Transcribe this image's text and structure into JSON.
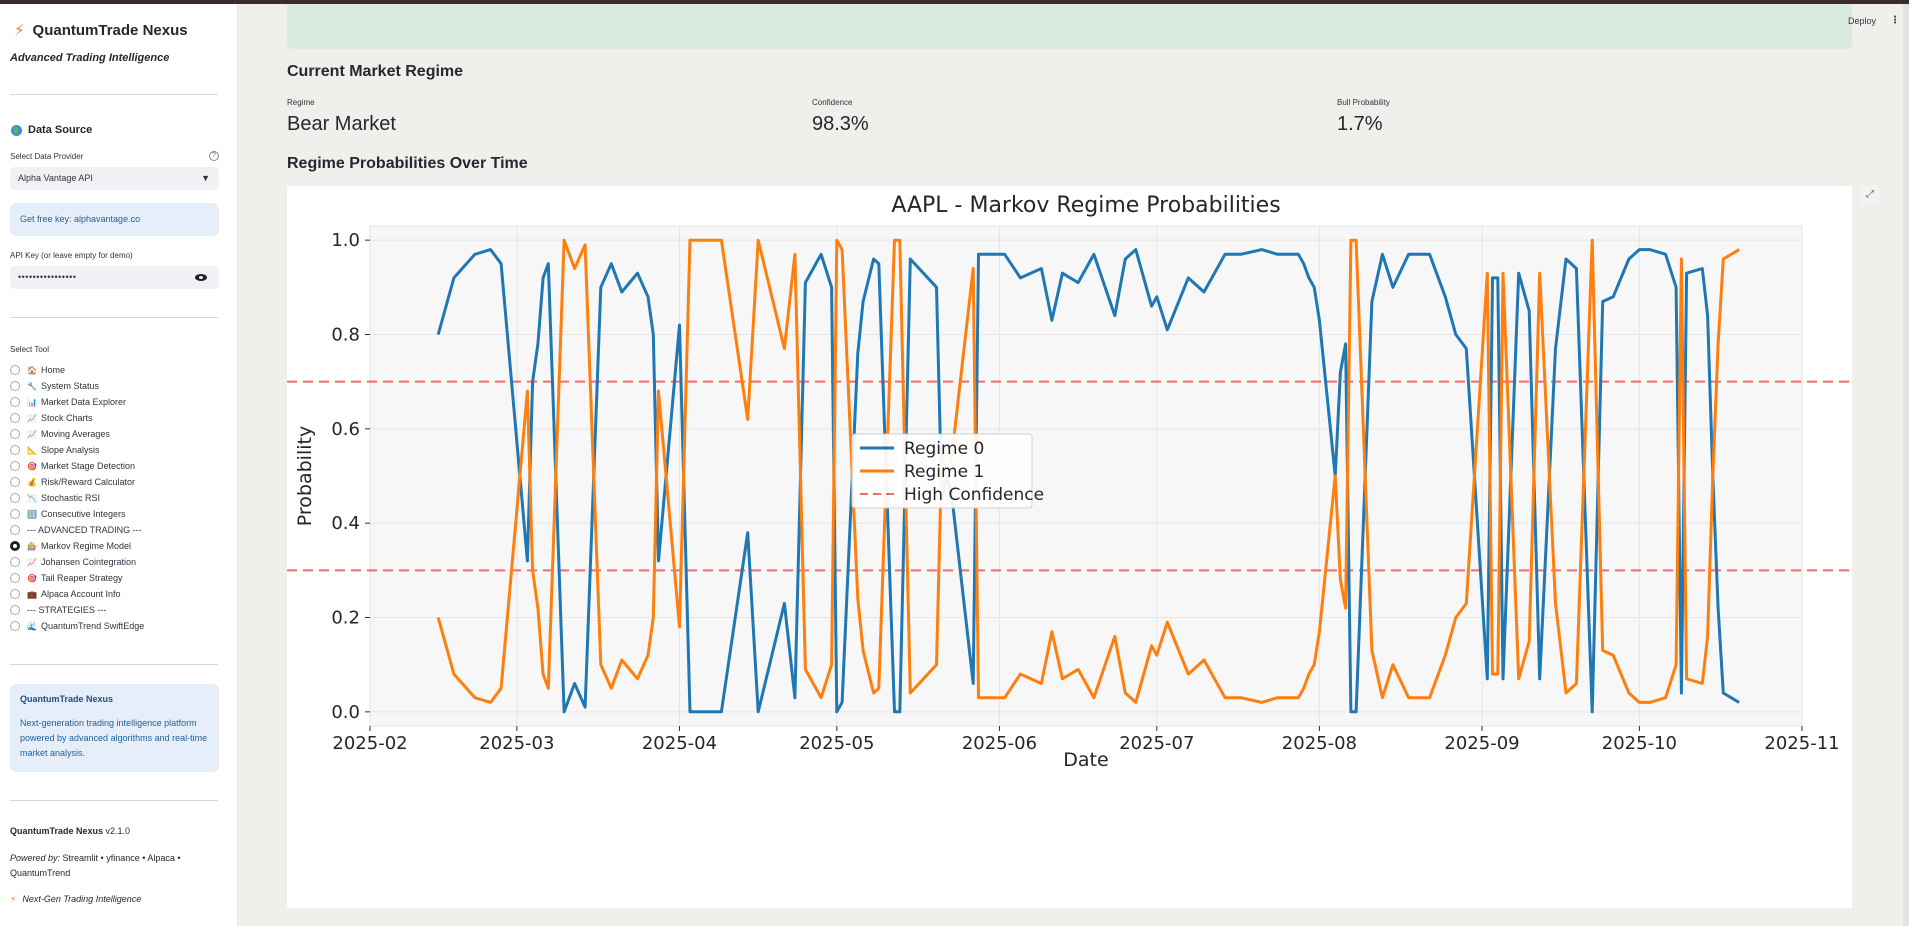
{
  "app": {
    "name": "QuantumTrade Nexus",
    "tagline": "Advanced Trading Intelligence"
  },
  "header": {
    "deploy_label": "Deploy",
    "menu_glyph": "⋮"
  },
  "sidebar": {
    "data_source_heading": "Data Source",
    "provider_label": "Select Data Provider",
    "provider_value": "Alpha Vantage API",
    "free_key_text": "Get free key: alphavantage.co",
    "api_key_label": "API Key (or leave empty for demo)",
    "api_key_value": "••••••••••••••••",
    "tool_label": "Select Tool",
    "tools": [
      {
        "label": "Home",
        "icon": "🏠",
        "selected": false
      },
      {
        "label": "System Status",
        "icon": "🔧",
        "selected": false
      },
      {
        "label": "Market Data Explorer",
        "icon": "📊",
        "selected": false
      },
      {
        "label": "Stock Charts",
        "icon": "📈",
        "selected": false
      },
      {
        "label": "Moving Averages",
        "icon": "📈",
        "selected": false
      },
      {
        "label": "Slope Analysis",
        "icon": "📐",
        "selected": false
      },
      {
        "label": "Market Stage Detection",
        "icon": "🎯",
        "selected": false
      },
      {
        "label": "Risk/Reward Calculator",
        "icon": "💰",
        "selected": false
      },
      {
        "label": "Stochastic RSI",
        "icon": "📉",
        "selected": false
      },
      {
        "label": "Consecutive Integers",
        "icon": "🔢",
        "selected": false
      },
      {
        "label": "--- ADVANCED TRADING ---",
        "icon": "",
        "selected": false
      },
      {
        "label": "Markov Regime Model",
        "icon": "🎰",
        "selected": true
      },
      {
        "label": "Johansen Cointegration",
        "icon": "📈",
        "selected": false
      },
      {
        "label": "Tail Reaper Strategy",
        "icon": "🎯",
        "selected": false
      },
      {
        "label": "Alpaca Account Info",
        "icon": "💼",
        "selected": false
      },
      {
        "label": "--- STRATEGIES ---",
        "icon": "",
        "selected": false
      },
      {
        "label": "QuantumTrend SwiftEdge",
        "icon": "🌊",
        "selected": false
      }
    ],
    "about_title": "QuantumTrade Nexus",
    "about_text": "Next-generation trading intelligence platform powered by advanced algorithms and real-time market analysis.",
    "version_name": "QuantumTrade Nexus",
    "version": "v2.1.0",
    "powered_by_label": "Powered by:",
    "powered_by": "Streamlit • yfinance • Alpaca • QuantumTrend",
    "footer": "Next-Gen Trading Intelligence"
  },
  "main": {
    "regime_heading": "Current Market Regime",
    "metrics": [
      {
        "label": "Regime",
        "value": "Bear Market"
      },
      {
        "label": "Confidence",
        "value": "98.3%"
      },
      {
        "label": "Bull Probability",
        "value": "1.7%"
      }
    ],
    "prob_heading": "Regime Probabilities Over Time"
  },
  "colors": {
    "regime0": "#1f77b4",
    "regime1": "#ff7f0e",
    "threshold": "#f26b6b"
  },
  "chart_data": {
    "type": "line",
    "title": "AAPL - Markov Regime Probabilities",
    "xlabel": "Date",
    "ylabel": "Probability",
    "xlim": [
      "2025-02-01",
      "2025-11-01"
    ],
    "ylim": [
      -0.03,
      1.03
    ],
    "x_ticks": [
      "2025-02",
      "2025-03",
      "2025-04",
      "2025-05",
      "2025-06",
      "2025-07",
      "2025-08",
      "2025-09",
      "2025-10",
      "2025-11"
    ],
    "y_ticks": [
      "0.0",
      "0.2",
      "0.4",
      "0.6",
      "0.8",
      "1.0"
    ],
    "grid": true,
    "legend_position": "center",
    "x": [
      "2025-02-14",
      "2025-02-17",
      "2025-02-21",
      "2025-02-24",
      "2025-02-26",
      "2025-03-03",
      "2025-03-04",
      "2025-03-05",
      "2025-03-06",
      "2025-03-07",
      "2025-03-10",
      "2025-03-12",
      "2025-03-14",
      "2025-03-17",
      "2025-03-19",
      "2025-03-21",
      "2025-03-24",
      "2025-03-26",
      "2025-03-27",
      "2025-03-28",
      "2025-04-01",
      "2025-04-03",
      "2025-04-04",
      "2025-04-07",
      "2025-04-08",
      "2025-04-09",
      "2025-04-14",
      "2025-04-16",
      "2025-04-21",
      "2025-04-23",
      "2025-04-25",
      "2025-04-28",
      "2025-04-30",
      "2025-05-01",
      "2025-05-02",
      "2025-05-05",
      "2025-05-06",
      "2025-05-08",
      "2025-05-09",
      "2025-05-12",
      "2025-05-13",
      "2025-05-15",
      "2025-05-20",
      "2025-05-21",
      "2025-05-22",
      "2025-05-23",
      "2025-05-27",
      "2025-05-28",
      "2025-05-30",
      "2025-06-02",
      "2025-06-05",
      "2025-06-09",
      "2025-06-11",
      "2025-06-13",
      "2025-06-16",
      "2025-06-19",
      "2025-06-23",
      "2025-06-25",
      "2025-06-27",
      "2025-06-30",
      "2025-07-01",
      "2025-07-03",
      "2025-07-07",
      "2025-07-10",
      "2025-07-14",
      "2025-07-17",
      "2025-07-21",
      "2025-07-24",
      "2025-07-28",
      "2025-07-29",
      "2025-07-30",
      "2025-07-31",
      "2025-08-01",
      "2025-08-04",
      "2025-08-05",
      "2025-08-06",
      "2025-08-07",
      "2025-08-08",
      "2025-08-11",
      "2025-08-13",
      "2025-08-15",
      "2025-08-18",
      "2025-08-20",
      "2025-08-22",
      "2025-08-25",
      "2025-08-27",
      "2025-08-29",
      "2025-09-02",
      "2025-09-03",
      "2025-09-04",
      "2025-09-05",
      "2025-09-08",
      "2025-09-10",
      "2025-09-12",
      "2025-09-15",
      "2025-09-17",
      "2025-09-19",
      "2025-09-22",
      "2025-09-24",
      "2025-09-26",
      "2025-09-29",
      "2025-10-01",
      "2025-10-03",
      "2025-10-06",
      "2025-10-08",
      "2025-10-09",
      "2025-10-10",
      "2025-10-13",
      "2025-10-14",
      "2025-10-15",
      "2025-10-16",
      "2025-10-17",
      "2025-10-20"
    ],
    "series": [
      {
        "name": "Regime 0",
        "values": [
          0.8,
          0.92,
          0.97,
          0.98,
          0.95,
          0.32,
          0.7,
          0.78,
          0.92,
          0.95,
          0.0,
          0.06,
          0.01,
          0.9,
          0.95,
          0.89,
          0.93,
          0.88,
          0.8,
          0.32,
          0.82,
          0.0,
          0.0,
          0.0,
          0.0,
          0.0,
          0.38,
          0.0,
          0.23,
          0.03,
          0.91,
          0.97,
          0.9,
          0.0,
          0.02,
          0.76,
          0.87,
          0.96,
          0.95,
          0.0,
          0.0,
          0.96,
          0.9,
          0.45,
          0.5,
          0.45,
          0.06,
          0.97,
          0.97,
          0.97,
          0.92,
          0.94,
          0.83,
          0.93,
          0.91,
          0.97,
          0.84,
          0.96,
          0.98,
          0.86,
          0.88,
          0.81,
          0.92,
          0.89,
          0.97,
          0.97,
          0.98,
          0.97,
          0.97,
          0.95,
          0.92,
          0.9,
          0.83,
          0.5,
          0.72,
          0.78,
          0.0,
          0.0,
          0.87,
          0.97,
          0.9,
          0.97,
          0.97,
          0.97,
          0.88,
          0.8,
          0.77,
          0.07,
          0.92,
          0.92,
          0.07,
          0.93,
          0.85,
          0.07,
          0.77,
          0.96,
          0.94,
          0.0,
          0.87,
          0.88,
          0.96,
          0.98,
          0.98,
          0.97,
          0.9,
          0.04,
          0.93,
          0.94,
          0.84,
          0.5,
          0.22,
          0.04,
          0.02
        ]
      },
      {
        "name": "Regime 1",
        "values": [
          0.2,
          0.08,
          0.03,
          0.02,
          0.05,
          0.68,
          0.3,
          0.22,
          0.08,
          0.05,
          1.0,
          0.94,
          0.99,
          0.1,
          0.05,
          0.11,
          0.07,
          0.12,
          0.2,
          0.68,
          0.18,
          1.0,
          1.0,
          1.0,
          1.0,
          1.0,
          0.62,
          1.0,
          0.77,
          0.97,
          0.09,
          0.03,
          0.1,
          1.0,
          0.98,
          0.24,
          0.13,
          0.04,
          0.05,
          1.0,
          1.0,
          0.04,
          0.1,
          0.55,
          0.5,
          0.55,
          0.94,
          0.03,
          0.03,
          0.03,
          0.08,
          0.06,
          0.17,
          0.07,
          0.09,
          0.03,
          0.16,
          0.04,
          0.02,
          0.14,
          0.12,
          0.19,
          0.08,
          0.11,
          0.03,
          0.03,
          0.02,
          0.03,
          0.03,
          0.05,
          0.08,
          0.1,
          0.17,
          0.5,
          0.28,
          0.22,
          1.0,
          1.0,
          0.13,
          0.03,
          0.1,
          0.03,
          0.03,
          0.03,
          0.12,
          0.2,
          0.23,
          0.93,
          0.08,
          0.08,
          0.93,
          0.07,
          0.15,
          0.93,
          0.23,
          0.04,
          0.06,
          1.0,
          0.13,
          0.12,
          0.04,
          0.02,
          0.02,
          0.03,
          0.1,
          0.96,
          0.07,
          0.06,
          0.16,
          0.5,
          0.78,
          0.96,
          0.98
        ]
      }
    ],
    "reference_lines": [
      {
        "name": "High Confidence",
        "values": [
          0.3,
          0.7
        ],
        "style": "dashed"
      }
    ]
  }
}
